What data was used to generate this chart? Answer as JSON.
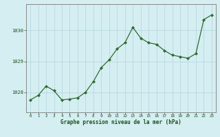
{
  "x": [
    0,
    1,
    2,
    3,
    4,
    5,
    6,
    7,
    8,
    9,
    10,
    11,
    12,
    13,
    14,
    15,
    16,
    17,
    18,
    19,
    20,
    21,
    22,
    23
  ],
  "y": [
    1027.75,
    1027.9,
    1028.2,
    1028.05,
    1027.75,
    1027.78,
    1027.82,
    1028.0,
    1028.35,
    1028.8,
    1029.05,
    1029.4,
    1029.6,
    1030.1,
    1029.75,
    1029.6,
    1029.55,
    1029.35,
    1029.2,
    1029.15,
    1029.1,
    1029.25,
    1030.35,
    1030.5
  ],
  "line_color": "#2d6b2d",
  "marker_color": "#2d6b2d",
  "bg_color": "#d5eef2",
  "grid_major_color": "#b0d4dc",
  "grid_minor_color": "#c5e5ea",
  "border_color": "#888888",
  "xlabel": "Graphe pression niveau de la mer (hPa)",
  "xlabel_color": "#1a4f1a",
  "tick_color": "#1a4f1a",
  "ylim_min": 1027.35,
  "ylim_max": 1030.85,
  "yticks": [
    1028,
    1029,
    1030
  ],
  "xticks": [
    0,
    1,
    2,
    3,
    4,
    5,
    6,
    7,
    8,
    9,
    10,
    11,
    12,
    13,
    14,
    15,
    16,
    17,
    18,
    19,
    20,
    21,
    22,
    23
  ]
}
